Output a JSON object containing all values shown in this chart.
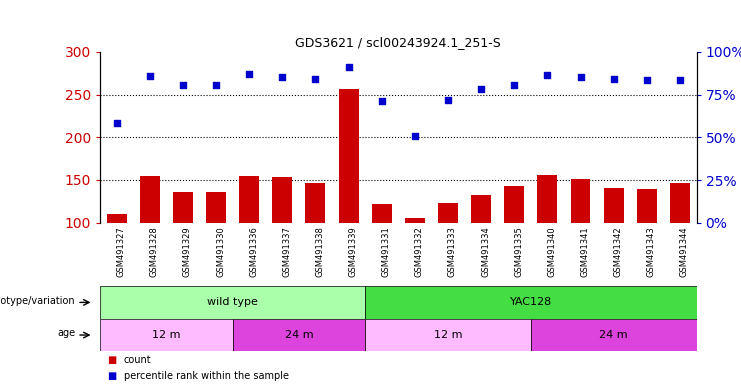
{
  "title": "GDS3621 / scl00243924.1_251-S",
  "samples": [
    "GSM491327",
    "GSM491328",
    "GSM491329",
    "GSM491330",
    "GSM491336",
    "GSM491337",
    "GSM491338",
    "GSM491339",
    "GSM491331",
    "GSM491332",
    "GSM491333",
    "GSM491334",
    "GSM491335",
    "GSM491340",
    "GSM491341",
    "GSM491342",
    "GSM491343",
    "GSM491344"
  ],
  "counts": [
    110,
    155,
    136,
    136,
    155,
    153,
    147,
    257,
    122,
    106,
    123,
    133,
    143,
    156,
    151,
    141,
    140,
    147
  ],
  "percentiles": [
    217,
    272,
    261,
    261,
    274,
    271,
    268,
    282,
    243,
    201,
    244,
    257,
    261,
    273,
    270,
    268,
    267,
    267
  ],
  "ylim_left": [
    100,
    300
  ],
  "ylim_right": [
    0,
    100
  ],
  "yticks_left": [
    100,
    150,
    200,
    250,
    300
  ],
  "yticks_right": [
    0,
    25,
    50,
    75,
    100
  ],
  "bar_color": "#cc0000",
  "dot_color": "#0000cc",
  "hline_values": [
    150,
    200,
    250
  ],
  "genotype_groups": [
    {
      "label": "wild type",
      "start": 0,
      "end": 8,
      "color": "#aaffaa"
    },
    {
      "label": "YAC128",
      "start": 8,
      "end": 18,
      "color": "#44dd44"
    }
  ],
  "age_groups": [
    {
      "label": "12 m",
      "start": 0,
      "end": 4,
      "color": "#ffbbff"
    },
    {
      "label": "24 m",
      "start": 4,
      "end": 8,
      "color": "#dd44dd"
    },
    {
      "label": "12 m",
      "start": 8,
      "end": 13,
      "color": "#ffbbff"
    },
    {
      "label": "24 m",
      "start": 13,
      "end": 18,
      "color": "#dd44dd"
    }
  ],
  "legend_count_color": "#cc0000",
  "legend_dot_color": "#0000cc",
  "ylabel_left_color": "#cc0000",
  "ylabel_right_color": "#0000cc",
  "xtick_bg_color": "#cccccc",
  "bg_color": "#ffffff"
}
